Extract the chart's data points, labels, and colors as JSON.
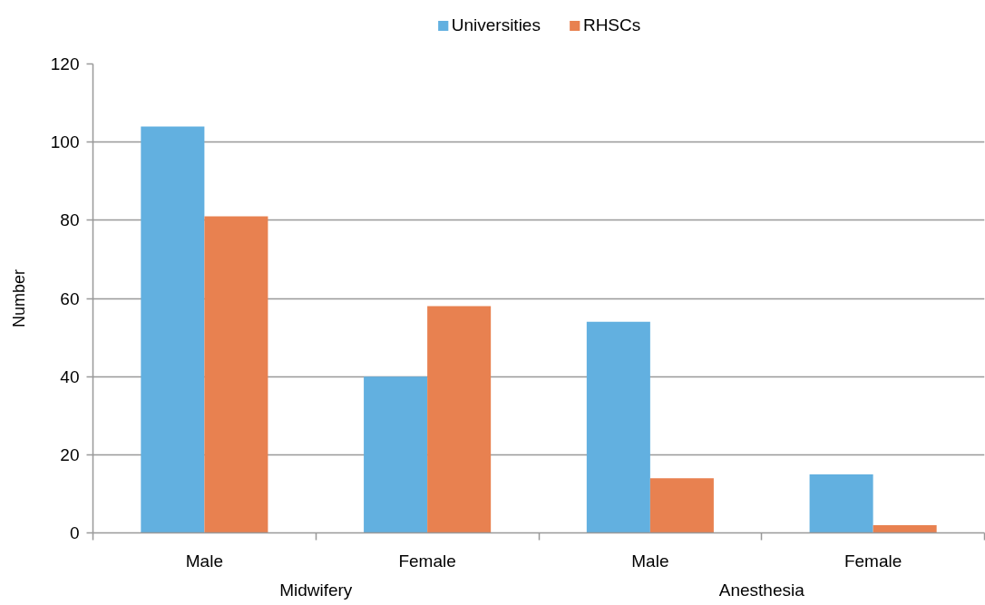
{
  "chart_data": {
    "type": "bar",
    "ylabel": "Number",
    "categories": [
      "Male",
      "Female",
      "Male",
      "Female"
    ],
    "annotations": [
      "Midwifery",
      "Anesthesia"
    ],
    "series": [
      {
        "name": "Universities",
        "color": "#62b0e0",
        "values": [
          104,
          40,
          54,
          15
        ]
      },
      {
        "name": "RHSCs",
        "color": "#e88150",
        "values": [
          81,
          58,
          14,
          2
        ]
      }
    ],
    "ylim": [
      0,
      120
    ],
    "yticks": [
      0,
      20,
      40,
      60,
      80,
      100,
      120
    ],
    "grid": "y",
    "legend": "top"
  }
}
